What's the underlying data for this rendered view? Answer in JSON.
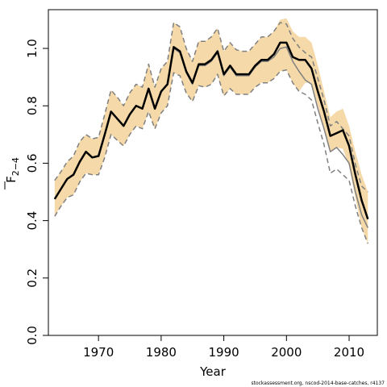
{
  "chart_data": {
    "type": "line",
    "xlabel": "Year",
    "ylabel": "F",
    "ylabel_subscript": "2−4",
    "xlim": [
      1962,
      2014.5
    ],
    "ylim": [
      0,
      1.135
    ],
    "x_ticks": [
      1970,
      1980,
      1990,
      2000,
      2010
    ],
    "y_ticks": [
      0.0,
      0.2,
      0.4,
      0.6,
      0.8,
      1.0
    ],
    "y_tick_labels": [
      "0.0",
      "0.2",
      "0.4",
      "0.6",
      "0.8",
      "1.0"
    ],
    "x": [
      1963,
      1964,
      1965,
      1966,
      1967,
      1968,
      1969,
      1970,
      1971,
      1972,
      1973,
      1974,
      1975,
      1976,
      1977,
      1978,
      1979,
      1980,
      1981,
      1982,
      1983,
      1984,
      1985,
      1986,
      1987,
      1988,
      1989,
      1990,
      1991,
      1992,
      1993,
      1994,
      1995,
      1996,
      1997,
      1998,
      1999,
      2000,
      2001,
      2002,
      2003,
      2004,
      2005,
      2006,
      2007,
      2008,
      2009,
      2010,
      2011,
      2012,
      2013
    ],
    "series": [
      {
        "role": "estimate",
        "color": "#000000",
        "values": [
          0.475,
          0.51,
          0.545,
          0.56,
          0.605,
          0.64,
          0.62,
          0.625,
          0.7,
          0.78,
          0.755,
          0.73,
          0.77,
          0.8,
          0.79,
          0.86,
          0.79,
          0.85,
          0.875,
          1.005,
          0.99,
          0.92,
          0.88,
          0.945,
          0.945,
          0.96,
          0.99,
          0.91,
          0.94,
          0.91,
          0.91,
          0.91,
          0.94,
          0.96,
          0.96,
          0.98,
          1.02,
          1.02,
          0.97,
          0.96,
          0.96,
          0.93,
          0.85,
          0.78,
          0.695,
          0.705,
          0.715,
          0.66,
          0.56,
          0.47,
          0.405
        ]
      },
      {
        "role": "reference",
        "color": "#808080",
        "values": [
          0.475,
          0.51,
          0.545,
          0.56,
          0.605,
          0.64,
          0.62,
          0.625,
          0.7,
          0.78,
          0.755,
          0.73,
          0.77,
          0.8,
          0.79,
          0.86,
          0.79,
          0.85,
          0.875,
          1.0,
          0.985,
          0.915,
          0.875,
          0.94,
          0.94,
          0.955,
          0.985,
          0.905,
          0.935,
          0.905,
          0.905,
          0.905,
          0.935,
          0.955,
          0.955,
          0.97,
          1.0,
          1.005,
          0.955,
          0.92,
          0.89,
          0.875,
          0.79,
          0.72,
          0.64,
          0.655,
          0.63,
          0.6,
          0.5,
          0.42,
          0.375
        ]
      },
      {
        "role": "lower-bound",
        "color": "#808080",
        "values": [
          0.415,
          0.45,
          0.48,
          0.49,
          0.535,
          0.565,
          0.56,
          0.56,
          0.62,
          0.7,
          0.68,
          0.66,
          0.7,
          0.73,
          0.72,
          0.78,
          0.72,
          0.775,
          0.8,
          0.915,
          0.905,
          0.845,
          0.815,
          0.87,
          0.865,
          0.875,
          0.91,
          0.835,
          0.86,
          0.84,
          0.84,
          0.84,
          0.865,
          0.88,
          0.88,
          0.895,
          0.92,
          0.925,
          0.88,
          0.85,
          0.84,
          0.82,
          0.74,
          0.665,
          0.565,
          0.58,
          0.56,
          0.54,
          0.45,
          0.375,
          0.32
        ]
      },
      {
        "role": "upper-bound",
        "color": "#808080",
        "values": [
          0.54,
          0.57,
          0.605,
          0.625,
          0.675,
          0.7,
          0.685,
          0.69,
          0.77,
          0.855,
          0.83,
          0.8,
          0.845,
          0.875,
          0.865,
          0.945,
          0.865,
          0.93,
          0.955,
          1.09,
          1.075,
          1.0,
          0.955,
          1.025,
          1.025,
          1.04,
          1.07,
          0.99,
          1.02,
          0.995,
          0.99,
          0.99,
          1.015,
          1.04,
          1.04,
          1.06,
          1.09,
          1.085,
          1.035,
          1.005,
          0.985,
          0.97,
          0.895,
          0.82,
          0.73,
          0.745,
          0.72,
          0.695,
          0.595,
          0.52,
          0.5
        ]
      }
    ],
    "band": {
      "color": "#f5d9a8",
      "lower": [
        0.415,
        0.45,
        0.48,
        0.49,
        0.535,
        0.565,
        0.56,
        0.56,
        0.62,
        0.7,
        0.68,
        0.66,
        0.7,
        0.73,
        0.72,
        0.78,
        0.72,
        0.775,
        0.8,
        0.915,
        0.905,
        0.845,
        0.815,
        0.87,
        0.865,
        0.875,
        0.91,
        0.835,
        0.86,
        0.84,
        0.84,
        0.84,
        0.865,
        0.88,
        0.88,
        0.895,
        0.92,
        0.925,
        0.88,
        0.85,
        0.88,
        0.88,
        0.8,
        0.72,
        0.64,
        0.655,
        0.65,
        0.59,
        0.48,
        0.375,
        0.32
      ],
      "upper": [
        0.54,
        0.57,
        0.605,
        0.625,
        0.675,
        0.7,
        0.685,
        0.69,
        0.77,
        0.855,
        0.83,
        0.8,
        0.845,
        0.875,
        0.865,
        0.945,
        0.865,
        0.93,
        0.955,
        1.09,
        1.075,
        1.0,
        0.955,
        1.025,
        1.025,
        1.04,
        1.07,
        0.99,
        1.02,
        0.995,
        0.99,
        0.99,
        1.015,
        1.04,
        1.04,
        1.06,
        1.1,
        1.105,
        1.06,
        1.04,
        1.04,
        1.02,
        0.94,
        0.85,
        0.76,
        0.78,
        0.79,
        0.73,
        0.64,
        0.56,
        0.5
      ]
    },
    "footer": "stockassessment.org, nscod-2014-base-catches, r4137",
    "grid": false,
    "legend": "none"
  }
}
